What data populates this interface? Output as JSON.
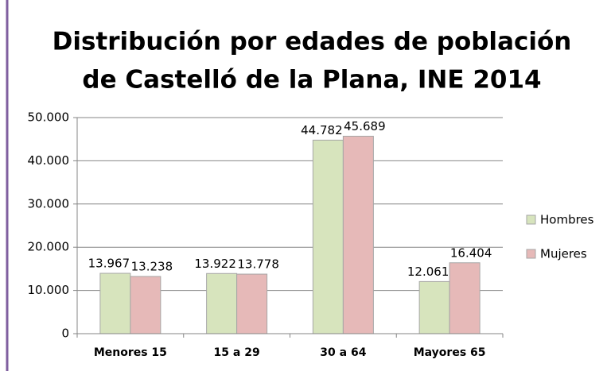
{
  "chart_data": {
    "type": "bar",
    "title": [
      "Distribución por edades de población",
      "de Castelló de la Plana, INE 2014"
    ],
    "categories": [
      "Menores 15",
      "15 a 29",
      "30 a 64",
      "Mayores 65"
    ],
    "series": [
      {
        "name": "Hombres",
        "color": "#d7e4bd",
        "values": [
          13967,
          13922,
          44782,
          12061
        ],
        "value_labels": [
          "13.967",
          "13.922",
          "44.782",
          "12.061"
        ]
      },
      {
        "name": "Mujeres",
        "color": "#e6b9b8",
        "values": [
          13238,
          13778,
          45689,
          16404
        ],
        "value_labels": [
          "13.238",
          "13.778",
          "45.689",
          "16.404"
        ]
      }
    ],
    "ylim": [
      0,
      50000
    ],
    "yticks": [
      0,
      {
        "value": 10000,
        "label": "10.000"
      },
      {
        "value": 20000,
        "label": "20.000"
      },
      {
        "value": 30000,
        "label": "30.000"
      },
      {
        "value": 40000,
        "label": "40.000"
      },
      {
        "value": 50000,
        "label": "50.000"
      }
    ],
    "grid": true,
    "legend": "right"
  }
}
